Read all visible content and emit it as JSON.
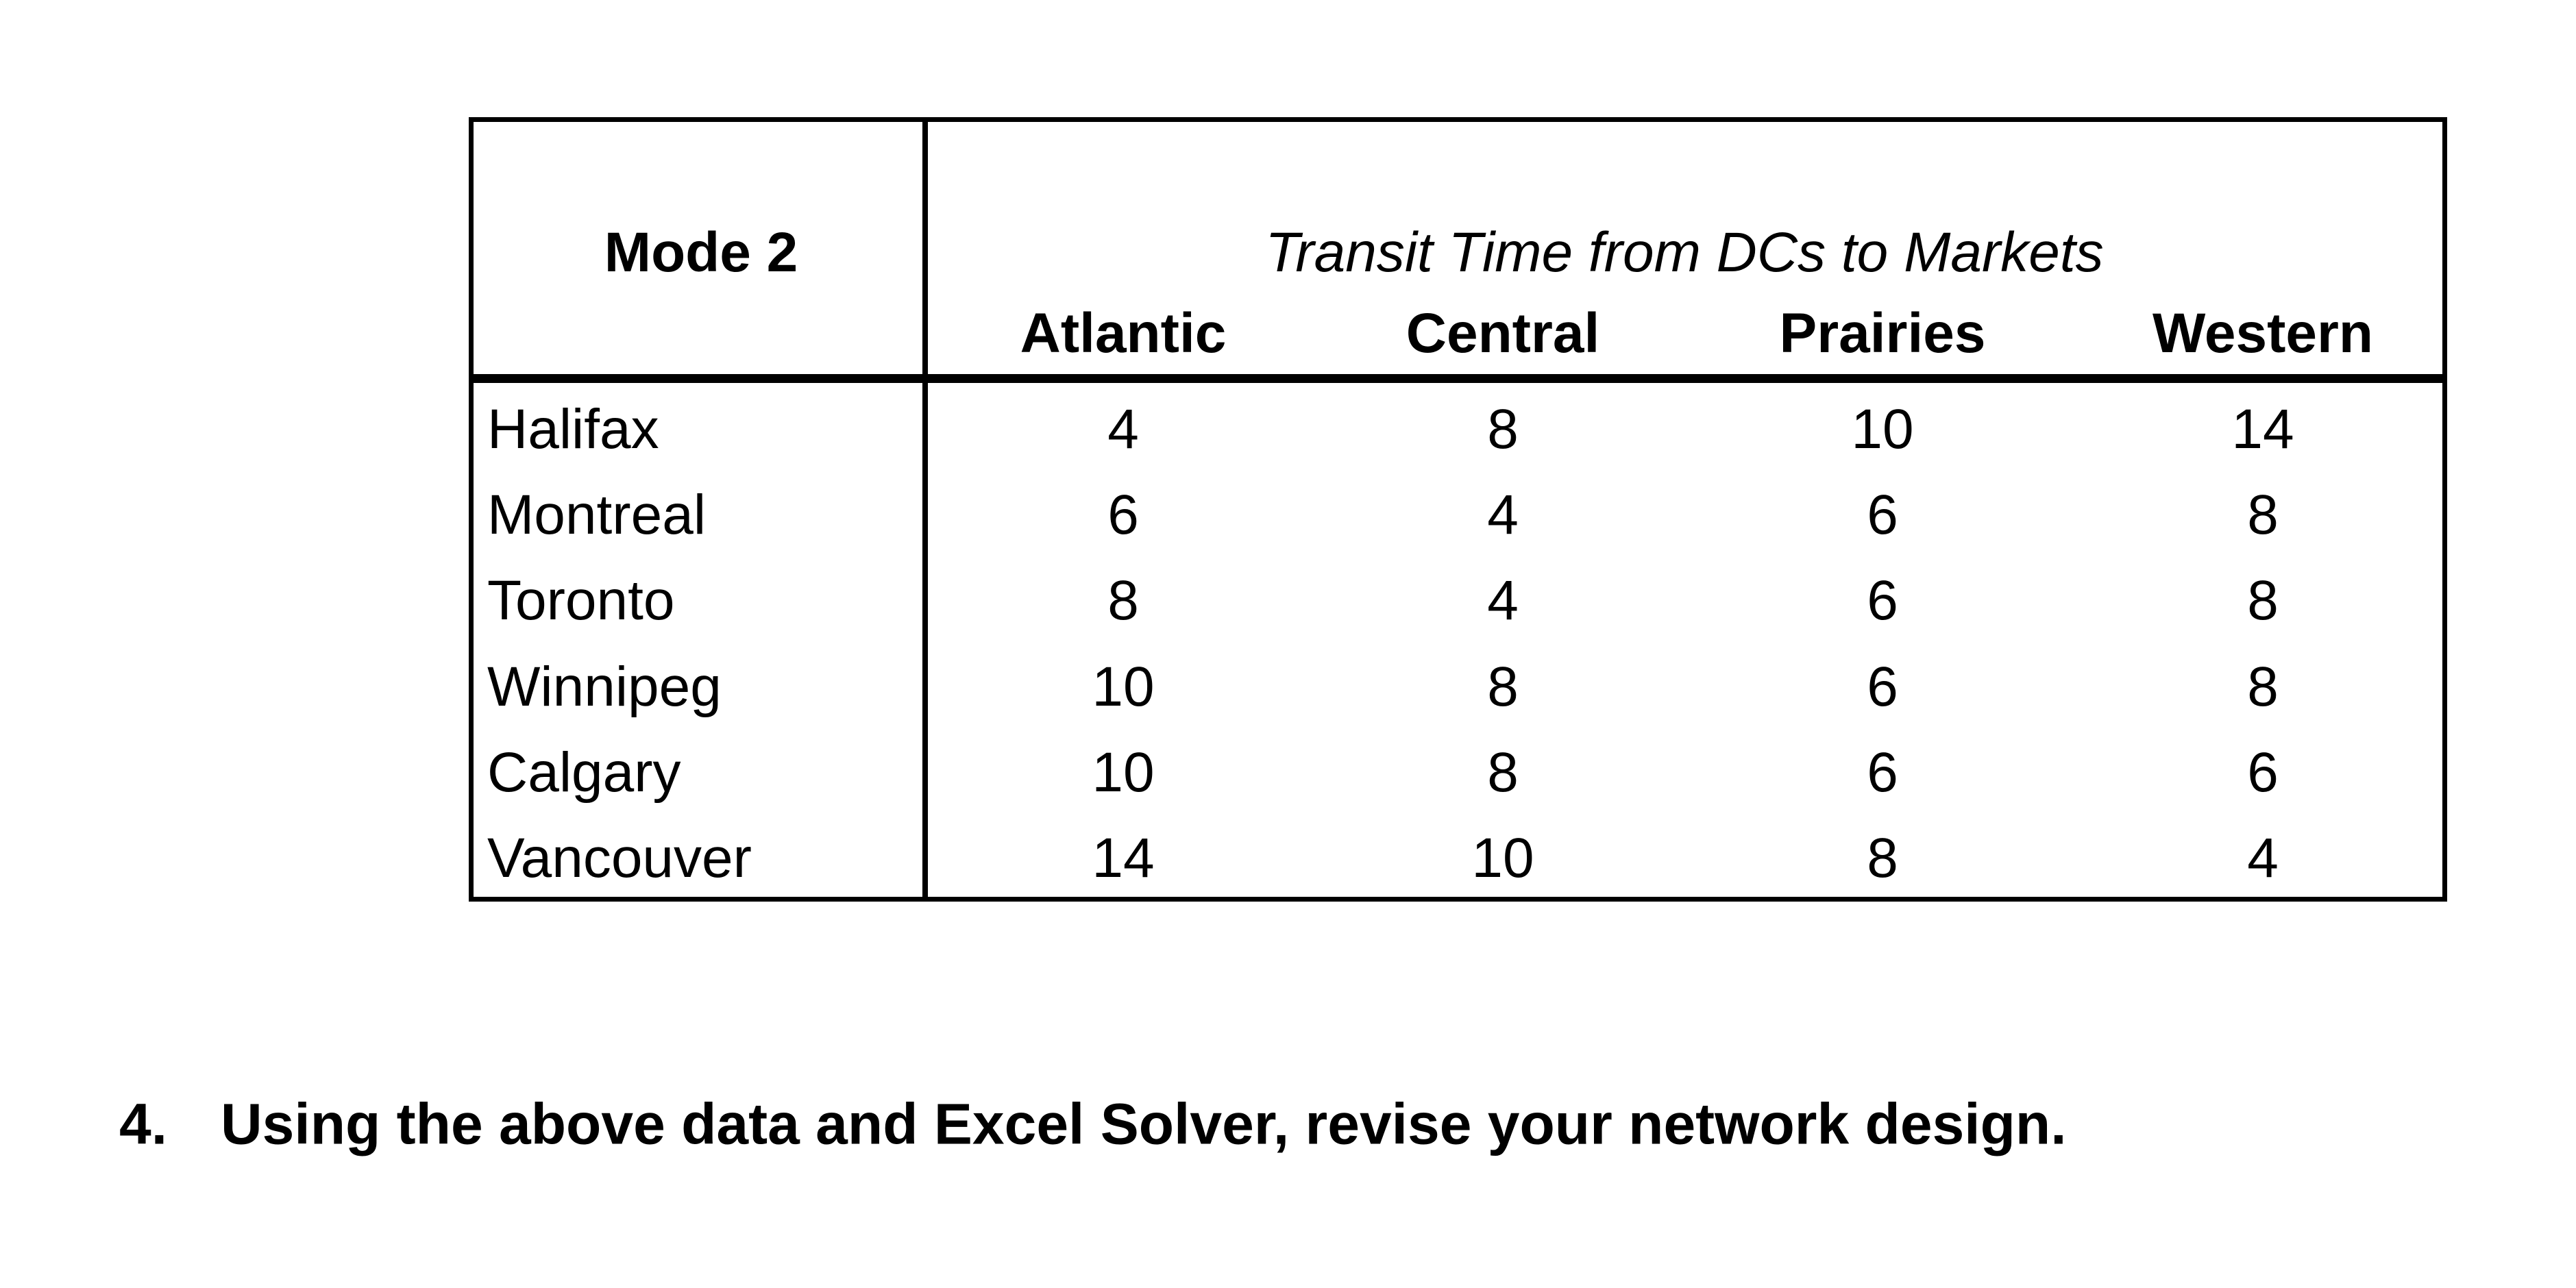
{
  "table": {
    "corner_label": "Mode 2",
    "group_title": "Transit Time from DCs to Markets",
    "columns": [
      "Atlantic",
      "Central",
      "Prairies",
      "Western"
    ],
    "rows": [
      {
        "label": "Halifax",
        "values": [
          "4",
          "8",
          "10",
          "14"
        ]
      },
      {
        "label": "Montreal",
        "values": [
          "6",
          "4",
          "6",
          "8"
        ]
      },
      {
        "label": "Toronto",
        "values": [
          "8",
          "4",
          "6",
          "8"
        ]
      },
      {
        "label": "Winnipeg",
        "values": [
          "10",
          "8",
          "6",
          "8"
        ]
      },
      {
        "label": "Calgary",
        "values": [
          "10",
          "8",
          "6",
          "6"
        ]
      },
      {
        "label": "Vancouver",
        "values": [
          "14",
          "10",
          "8",
          "4"
        ]
      }
    ]
  },
  "question": {
    "number": "4.",
    "text": "Using the above data and Excel Solver, revise your network design."
  }
}
